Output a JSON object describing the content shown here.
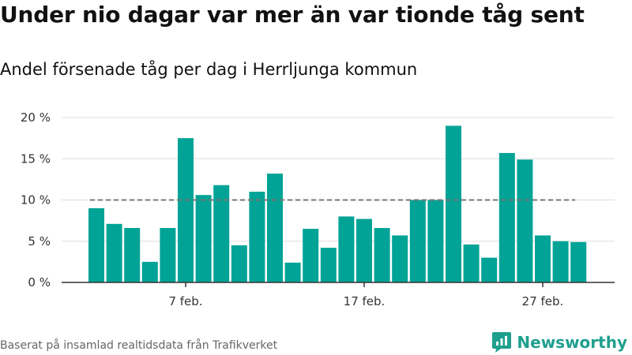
{
  "title": "Under nio dagar var mer än var tionde tåg sent",
  "subtitle": "Andel försenade tåg per dag i Herrljunga kommun",
  "source": "Baserat på insamlad realtidsdata från Trafikverket",
  "brand": "Newsworthy",
  "colors": {
    "bar": "#00a396",
    "reference": "#777777",
    "grid": "#dddddd",
    "brand": "#1f9f8e"
  },
  "chart_data": {
    "type": "bar",
    "x_ticks": [
      "7 feb.",
      "17 feb.",
      "27 feb."
    ],
    "y_ticks": [
      "0 %",
      "5 %",
      "10 %",
      "15 %",
      "20 %"
    ],
    "ylim": [
      0,
      20
    ],
    "reference_line": 10,
    "grid": true,
    "days": [
      {
        "day": 2,
        "value": 9.0
      },
      {
        "day": 3,
        "value": 7.1
      },
      {
        "day": 4,
        "value": 6.6
      },
      {
        "day": 5,
        "value": 2.5
      },
      {
        "day": 6,
        "value": 6.6
      },
      {
        "day": 7,
        "value": 17.5
      },
      {
        "day": 8,
        "value": 10.6
      },
      {
        "day": 9,
        "value": 11.8
      },
      {
        "day": 10,
        "value": 4.5
      },
      {
        "day": 11,
        "value": 11.0
      },
      {
        "day": 12,
        "value": 13.2
      },
      {
        "day": 13,
        "value": 2.4
      },
      {
        "day": 14,
        "value": 6.5
      },
      {
        "day": 15,
        "value": 4.2
      },
      {
        "day": 16,
        "value": 8.0
      },
      {
        "day": 17,
        "value": 7.7
      },
      {
        "day": 18,
        "value": 6.6
      },
      {
        "day": 19,
        "value": 5.7
      },
      {
        "day": 20,
        "value": 10.0
      },
      {
        "day": 21,
        "value": 10.0
      },
      {
        "day": 22,
        "value": 19.0
      },
      {
        "day": 23,
        "value": 4.6
      },
      {
        "day": 24,
        "value": 3.0
      },
      {
        "day": 25,
        "value": 15.7
      },
      {
        "day": 26,
        "value": 14.9
      },
      {
        "day": 27,
        "value": 5.7
      },
      {
        "day": 28,
        "value": 5.0
      },
      {
        "day": 29,
        "value": 4.9
      }
    ]
  }
}
